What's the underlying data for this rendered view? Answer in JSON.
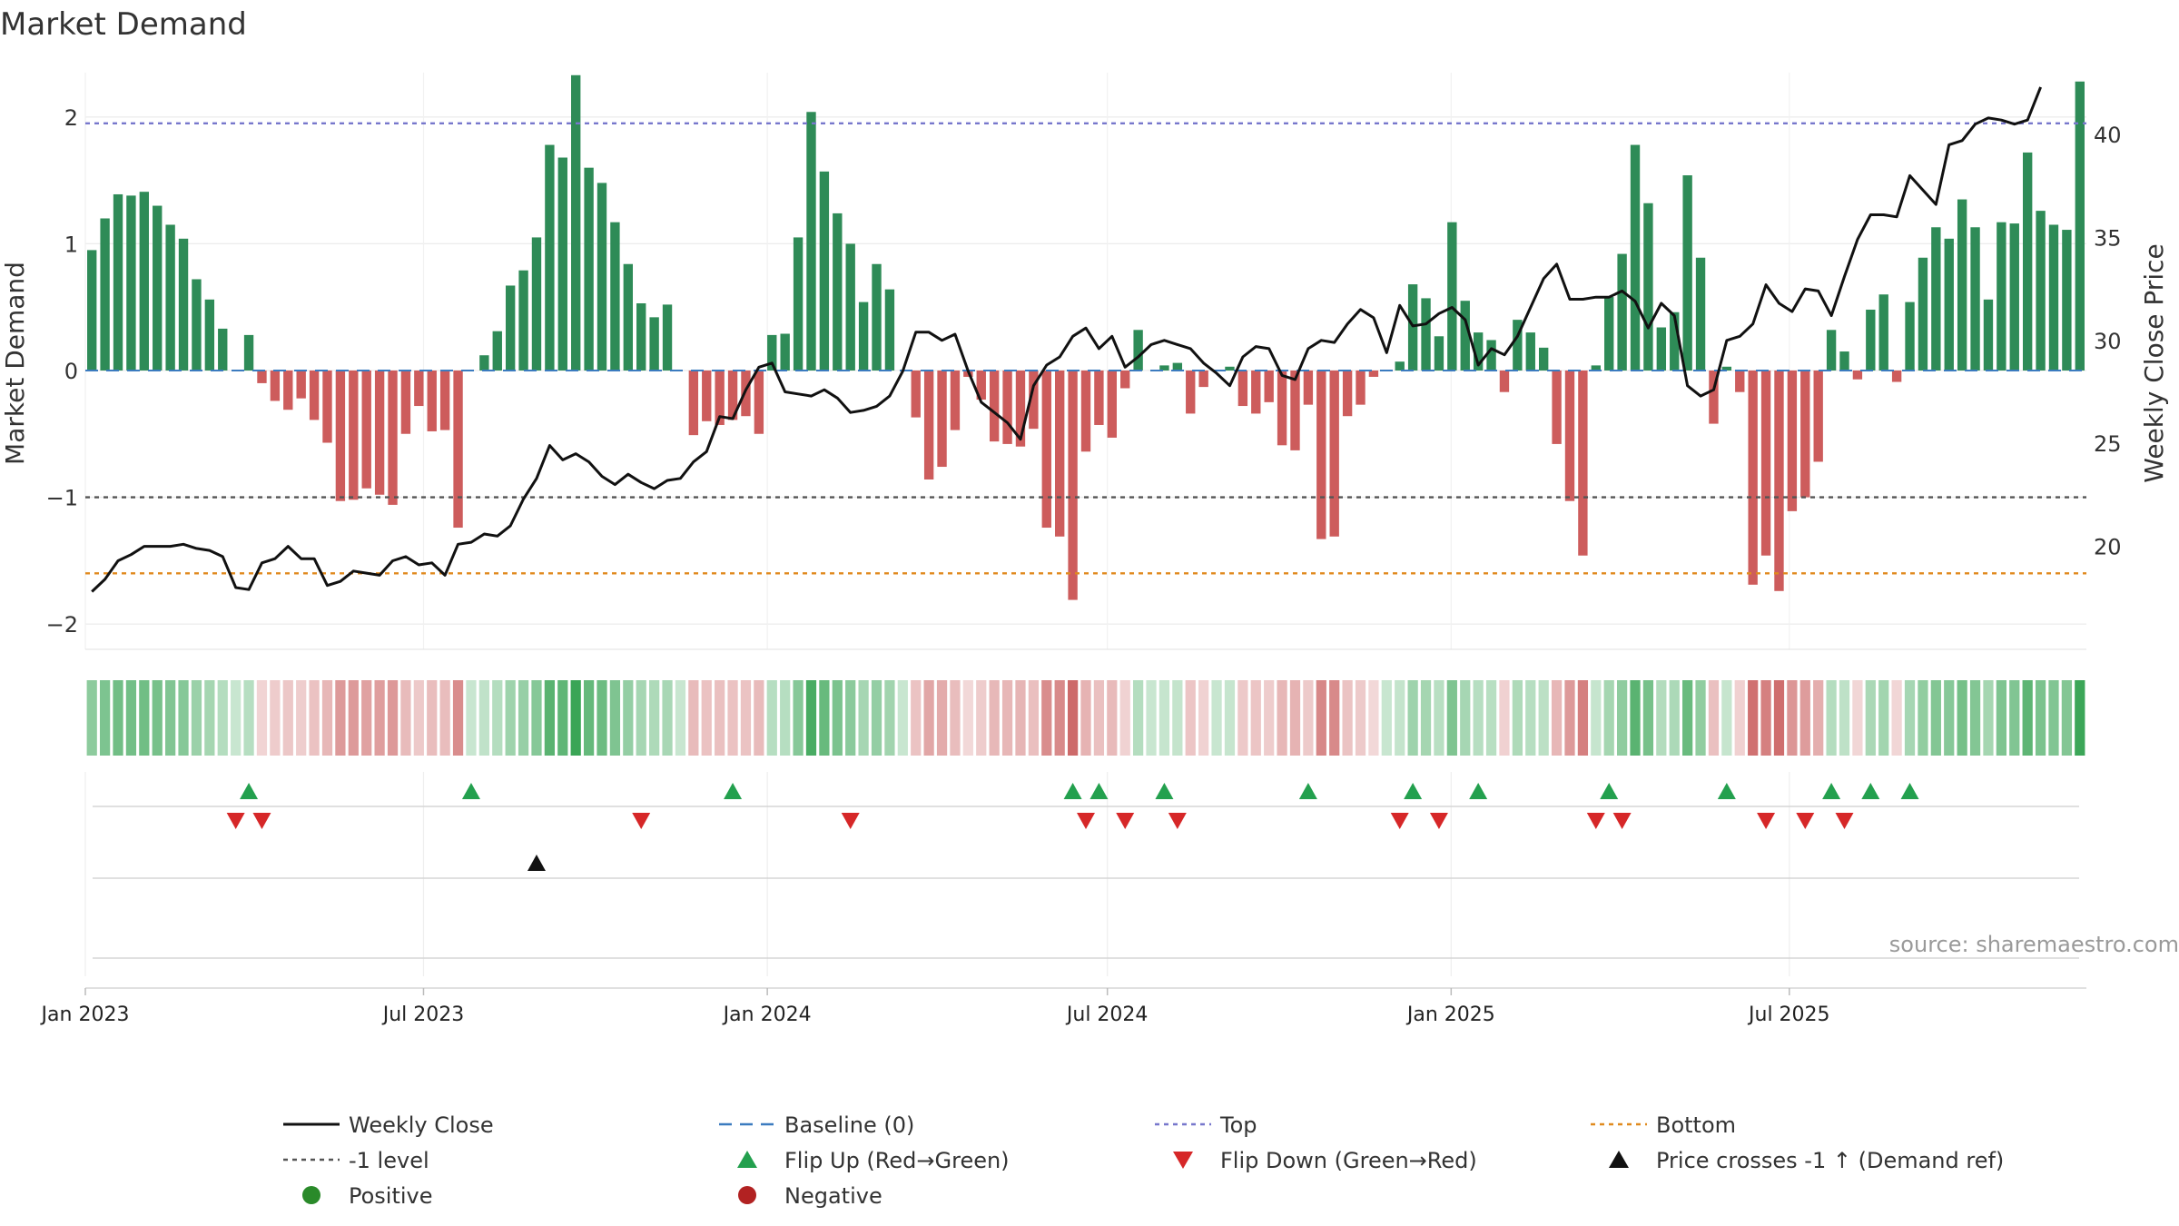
{
  "chart_data": {
    "type": "bar",
    "title": "Market Demand",
    "ylabel": "Market Demand",
    "ylabel_right": "Weekly Close Price",
    "ylim": [
      -2.2,
      2.35
    ],
    "ylim_right": [
      15,
      43
    ],
    "yticks": [
      -2,
      -1,
      0,
      1,
      2
    ],
    "yticks_right": [
      20,
      25,
      30,
      35,
      40
    ],
    "ytick_labels": [
      "−2",
      "−1",
      "0",
      "1",
      "2"
    ],
    "start_date": "2023-01-01",
    "week_step_days": 7,
    "x_ticks": [
      {
        "label": "Jan 2023",
        "date": "2023-01-01"
      },
      {
        "label": "Jul 2023",
        "date": "2023-07-01"
      },
      {
        "label": "Jan 2024",
        "date": "2024-01-01"
      },
      {
        "label": "Jul 2024",
        "date": "2024-07-01"
      },
      {
        "label": "Jan 2025",
        "date": "2025-01-01"
      },
      {
        "label": "Jul 2025",
        "date": "2025-07-01"
      }
    ],
    "x_end_date": "2025-10-19",
    "reference_lines": [
      {
        "name": "Top",
        "value": 1.95,
        "color": "#7777cc"
      },
      {
        "name": "-1 level",
        "value": -1.0,
        "color": "#555555"
      },
      {
        "name": "Bottom",
        "value": -1.6,
        "color": "#e08a1e"
      }
    ],
    "series": [
      {
        "name": "Market Demand",
        "axis": "left",
        "values": [
          0.95,
          1.2,
          1.39,
          1.38,
          1.41,
          1.3,
          1.15,
          1.04,
          0.72,
          0.56,
          0.33,
          0.0,
          0.28,
          -0.1,
          -0.24,
          -0.31,
          -0.22,
          -0.39,
          -0.57,
          -1.03,
          -1.02,
          -0.93,
          -0.98,
          -1.06,
          -0.5,
          -0.28,
          -0.48,
          -0.47,
          -1.24,
          0.0,
          0.12,
          0.31,
          0.67,
          0.79,
          1.05,
          1.78,
          1.68,
          2.33,
          1.6,
          1.48,
          1.17,
          0.84,
          0.53,
          0.42,
          0.52,
          0.0,
          -0.51,
          -0.4,
          -0.43,
          -0.39,
          -0.36,
          -0.5,
          0.28,
          0.29,
          1.05,
          2.04,
          1.57,
          1.24,
          1.0,
          0.54,
          0.84,
          0.64,
          0.0,
          -0.37,
          -0.86,
          -0.76,
          -0.47,
          -0.05,
          -0.23,
          -0.56,
          -0.58,
          -0.6,
          -0.46,
          -1.24,
          -1.31,
          -1.81,
          -0.64,
          -0.43,
          -0.53,
          -0.14,
          0.32,
          0.0,
          0.04,
          0.06,
          -0.34,
          -0.13,
          0.0,
          0.03,
          -0.28,
          -0.34,
          -0.25,
          -0.59,
          -0.63,
          -0.27,
          -1.33,
          -1.31,
          -0.36,
          -0.27,
          -0.05,
          0.0,
          0.07,
          0.68,
          0.57,
          0.27,
          1.17,
          0.55,
          0.3,
          0.24,
          -0.17,
          0.4,
          0.3,
          0.18,
          -0.58,
          -1.03,
          -1.46,
          0.04,
          0.58,
          0.92,
          1.78,
          1.32,
          0.34,
          0.46,
          1.54,
          0.89,
          -0.42,
          0.03,
          -0.17,
          -1.69,
          -1.46,
          -1.74,
          -1.11,
          -1.0,
          -0.72,
          0.32,
          0.15,
          -0.07,
          0.48,
          0.6,
          -0.09,
          0.54,
          0.89,
          1.13,
          1.04,
          1.35,
          1.13,
          0.56,
          1.17,
          1.16,
          1.72,
          1.26,
          1.15,
          1.11,
          2.28
        ]
      },
      {
        "name": "Weekly Close",
        "axis": "right",
        "color": "#111111",
        "values": [
          17.8,
          18.4,
          19.3,
          19.6,
          20.0,
          20.0,
          20.0,
          20.1,
          19.9,
          19.8,
          19.5,
          18.0,
          17.9,
          19.2,
          19.4,
          20.0,
          19.4,
          19.4,
          18.1,
          18.3,
          18.8,
          18.7,
          18.6,
          19.3,
          19.5,
          19.1,
          19.2,
          18.6,
          20.1,
          20.2,
          20.6,
          20.5,
          21.0,
          22.3,
          23.3,
          24.9,
          24.2,
          24.5,
          24.1,
          23.4,
          23.0,
          23.5,
          23.1,
          22.8,
          23.2,
          23.3,
          24.1,
          24.6,
          26.3,
          26.2,
          27.6,
          28.7,
          28.9,
          27.5,
          27.4,
          27.3,
          27.6,
          27.2,
          26.5,
          26.6,
          26.8,
          27.3,
          28.5,
          30.4,
          30.4,
          30.0,
          30.3,
          28.5,
          27.0,
          26.5,
          26.0,
          25.2,
          27.8,
          28.8,
          29.2,
          30.2,
          30.6,
          29.6,
          30.2,
          28.7,
          29.2,
          29.8,
          30.0,
          29.8,
          29.6,
          28.9,
          28.4,
          27.8,
          29.2,
          29.7,
          29.6,
          28.3,
          28.1,
          29.6,
          30.0,
          29.9,
          30.8,
          31.5,
          31.1,
          29.4,
          31.7,
          30.7,
          30.8,
          31.3,
          31.6,
          31.0,
          28.8,
          29.6,
          29.3,
          30.2,
          31.6,
          33.0,
          33.7,
          32.0,
          32.0,
          32.1,
          32.1,
          32.4,
          31.9,
          30.6,
          31.8,
          31.2,
          27.8,
          27.3,
          27.6,
          30.0,
          30.2,
          30.8,
          32.7,
          31.8,
          31.4,
          32.5,
          32.4,
          31.2,
          33.1,
          34.9,
          36.1,
          36.1,
          36.0,
          38.0,
          37.3,
          36.6,
          39.5,
          39.7,
          40.5,
          40.8,
          40.7,
          40.5,
          40.7,
          42.3
        ]
      }
    ],
    "signals": {
      "flip_up": [
        12,
        29,
        49,
        75,
        77,
        82,
        93,
        101,
        106,
        116,
        125,
        133,
        136,
        139
      ],
      "flip_down": [
        11,
        13,
        42,
        58,
        76,
        79,
        83,
        100,
        103,
        115,
        117,
        128,
        131,
        134
      ],
      "price_cross": [
        34
      ]
    },
    "legend": [
      {
        "label": "Weekly Close",
        "kind": "line",
        "color": "#111111"
      },
      {
        "label": "Baseline (0)",
        "kind": "dash",
        "color": "#3b7bbf"
      },
      {
        "label": "Top",
        "kind": "dot",
        "color": "#7777cc"
      },
      {
        "label": "Bottom",
        "kind": "dot",
        "color": "#e08a1e"
      },
      {
        "label": "-1 level",
        "kind": "dot",
        "color": "#555555"
      },
      {
        "label": "Flip Up (Red→Green)",
        "kind": "tri-up",
        "color": "#23a04e"
      },
      {
        "label": "Flip Down (Green→Red)",
        "kind": "tri-down",
        "color": "#d62728"
      },
      {
        "label": "Price crosses -1 ↑ (Demand ref)",
        "kind": "tri-up",
        "color": "#111111"
      },
      {
        "label": "Positive",
        "kind": "circle",
        "color": "#2a8a2a"
      },
      {
        "label": "Negative",
        "kind": "circle",
        "color": "#b22222"
      }
    ],
    "legend_placement": "bottom",
    "source": "source: sharemaestro.com",
    "colors": {
      "positive_bar": "#2e8b57",
      "negative_bar": "#cd5c5c",
      "baseline": "#3b7bbf"
    }
  }
}
